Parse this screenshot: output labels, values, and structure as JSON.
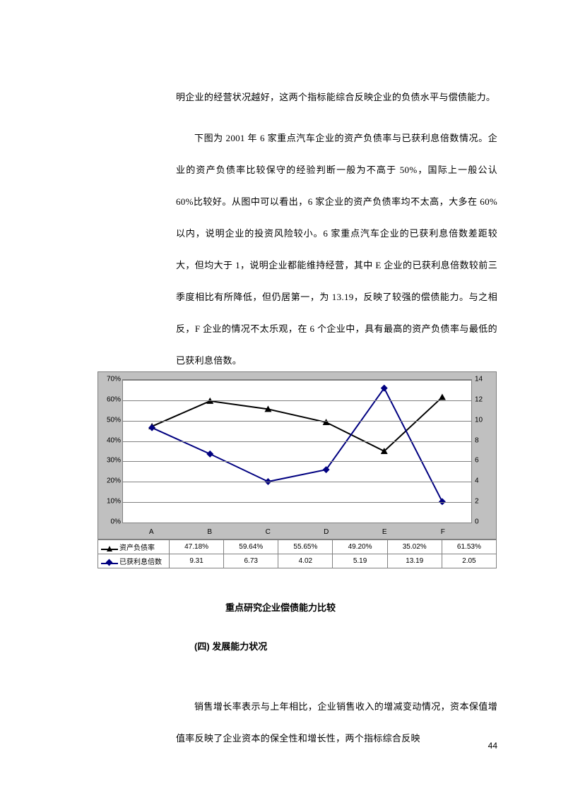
{
  "para_1": "明企业的经营状况越好，这两个指标能综合反映企业的负债水平与偿债能力。",
  "para_2": "下图为 2001 年 6 家重点汽车企业的资产负债率与已获利息倍数情况。企业的资产负债率比较保守的经验判断一般为不高于 50%，国际上一般公认 60%比较好。从图中可以看出，6 家企业的资产负债率均不太高，大多在 60%以内，说明企业的投资风险较小。6 家重点汽车企业的已获利息倍数差距较大，但均大于 1，说明企业都能维持经营，其中 E 企业的已获利息倍数较前三季度相比有所降低，但仍居第一，为 13.19，反映了较强的偿债能力。与之相反，F 企业的情况不太乐观，在 6 个企业中，具有最高的资产负债率与最低的已获利息倍数。",
  "chart": {
    "categories": [
      "A",
      "B",
      "C",
      "D",
      "E",
      "F"
    ],
    "series1_name": "资产负债率",
    "series2_name": "已获利息倍数",
    "s1_values": [
      47.18,
      59.64,
      55.65,
      49.2,
      35.02,
      61.53
    ],
    "s1_labels": [
      "47.18%",
      "59.64%",
      "55.65%",
      "49.20%",
      "35.02%",
      "61.53%"
    ],
    "s2_values": [
      9.31,
      6.73,
      4.02,
      5.19,
      13.19,
      2.05
    ],
    "s2_labels": [
      "9.31",
      "6.73",
      "4.02",
      "5.19",
      "13.19",
      "2.05"
    ],
    "y1_min": 0,
    "y1_max": 70,
    "y1_step": 10,
    "y1_suffix": "%",
    "y2_min": 0,
    "y2_max": 14,
    "y2_step": 2,
    "s1_color": "#000000",
    "s2_color": "#000080",
    "plot_bg": "#ffffff",
    "outer_bg": "#c0c0c0",
    "grid_color": "#808080"
  },
  "caption": "重点研究企业偿债能力比较",
  "subhead": "(四) 发展能力状况",
  "para_3": "销售增长率表示与上年相比，企业销售收入的增减变动情况，资本保值增值率反映了企业资本的保全性和增长性，两个指标综合反映",
  "page_number": "44"
}
